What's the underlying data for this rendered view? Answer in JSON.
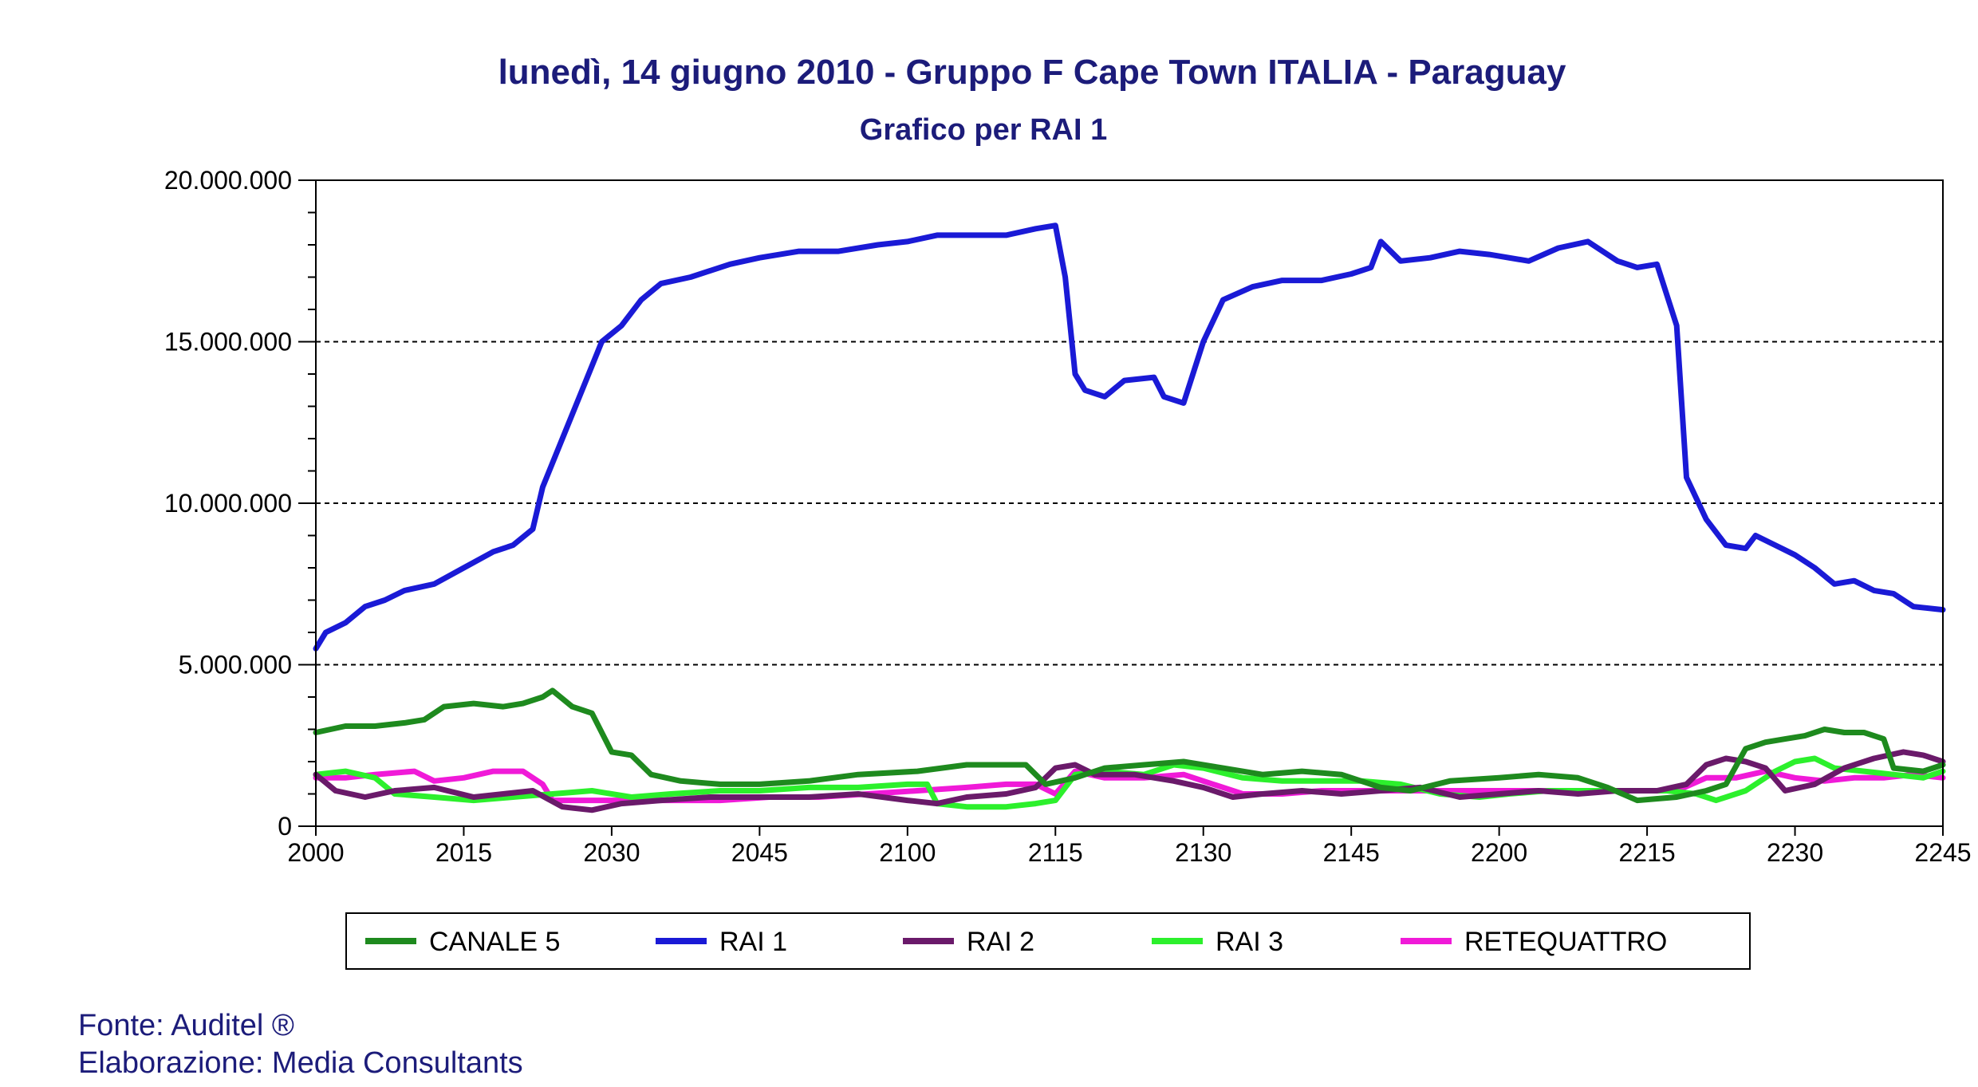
{
  "chart_data": {
    "type": "line",
    "title": "lunedì, 14 giugno 2010 - Gruppo F Cape Town  ITALIA - Paraguay",
    "subtitle": "Grafico per RAI 1",
    "xlabel": "",
    "ylabel": "",
    "x_tick_labels": [
      "2000",
      "2015",
      "2030",
      "2045",
      "2100",
      "2115",
      "2130",
      "2145",
      "2200",
      "2215",
      "2230",
      "2245"
    ],
    "x_range": [
      0,
      165
    ],
    "y_range": [
      0,
      20000000
    ],
    "y_ticks": [
      0,
      5000000,
      10000000,
      15000000,
      20000000
    ],
    "y_tick_labels": [
      "0",
      "5.000.000",
      "10.000.000",
      "15.000.000",
      "20.000.000"
    ],
    "grid": "dashed horizontal at 5.000.000, 10.000.000, 15.000.000",
    "legend_position": "bottom",
    "series": [
      {
        "name": "CANALE 5",
        "color": "#1e8a1e",
        "points": [
          [
            0,
            2900000
          ],
          [
            3,
            3100000
          ],
          [
            6,
            3100000
          ],
          [
            9,
            3200000
          ],
          [
            11,
            3300000
          ],
          [
            13,
            3700000
          ],
          [
            16,
            3800000
          ],
          [
            19,
            3700000
          ],
          [
            21,
            3800000
          ],
          [
            23,
            4000000
          ],
          [
            24,
            4200000
          ],
          [
            26,
            3700000
          ],
          [
            28,
            3500000
          ],
          [
            30,
            2300000
          ],
          [
            32,
            2200000
          ],
          [
            34,
            1600000
          ],
          [
            37,
            1400000
          ],
          [
            41,
            1300000
          ],
          [
            45,
            1300000
          ],
          [
            50,
            1400000
          ],
          [
            55,
            1600000
          ],
          [
            61,
            1700000
          ],
          [
            66,
            1900000
          ],
          [
            72,
            1900000
          ],
          [
            74,
            1300000
          ],
          [
            77,
            1500000
          ],
          [
            80,
            1800000
          ],
          [
            84,
            1900000
          ],
          [
            88,
            2000000
          ],
          [
            92,
            1800000
          ],
          [
            96,
            1600000
          ],
          [
            100,
            1700000
          ],
          [
            104,
            1600000
          ],
          [
            108,
            1200000
          ],
          [
            111,
            1100000
          ],
          [
            115,
            1400000
          ],
          [
            120,
            1500000
          ],
          [
            124,
            1600000
          ],
          [
            128,
            1500000
          ],
          [
            131,
            1200000
          ],
          [
            134,
            800000
          ],
          [
            138,
            900000
          ],
          [
            141,
            1100000
          ],
          [
            143,
            1300000
          ],
          [
            145,
            2400000
          ],
          [
            147,
            2600000
          ],
          [
            149,
            2700000
          ],
          [
            151,
            2800000
          ],
          [
            153,
            3000000
          ],
          [
            155,
            2900000
          ],
          [
            157,
            2900000
          ],
          [
            159,
            2700000
          ],
          [
            160,
            1800000
          ],
          [
            163,
            1700000
          ],
          [
            165,
            1900000
          ]
        ]
      },
      {
        "name": "RAI 1",
        "color": "#1a1ad6",
        "points": [
          [
            0,
            5500000
          ],
          [
            1,
            6000000
          ],
          [
            3,
            6300000
          ],
          [
            5,
            6800000
          ],
          [
            7,
            7000000
          ],
          [
            9,
            7300000
          ],
          [
            12,
            7500000
          ],
          [
            15,
            8000000
          ],
          [
            18,
            8500000
          ],
          [
            20,
            8700000
          ],
          [
            22,
            9200000
          ],
          [
            23,
            10500000
          ],
          [
            25,
            12000000
          ],
          [
            27,
            13500000
          ],
          [
            29,
            15000000
          ],
          [
            31,
            15500000
          ],
          [
            33,
            16300000
          ],
          [
            35,
            16800000
          ],
          [
            38,
            17000000
          ],
          [
            42,
            17400000
          ],
          [
            45,
            17600000
          ],
          [
            49,
            17800000
          ],
          [
            53,
            17800000
          ],
          [
            57,
            18000000
          ],
          [
            60,
            18100000
          ],
          [
            63,
            18300000
          ],
          [
            67,
            18300000
          ],
          [
            70,
            18300000
          ],
          [
            73,
            18500000
          ],
          [
            75,
            18600000
          ],
          [
            76,
            17000000
          ],
          [
            77,
            14000000
          ],
          [
            78,
            13500000
          ],
          [
            80,
            13300000
          ],
          [
            82,
            13800000
          ],
          [
            85,
            13900000
          ],
          [
            86,
            13300000
          ],
          [
            88,
            13100000
          ],
          [
            90,
            15000000
          ],
          [
            92,
            16300000
          ],
          [
            95,
            16700000
          ],
          [
            98,
            16900000
          ],
          [
            102,
            16900000
          ],
          [
            105,
            17100000
          ],
          [
            107,
            17300000
          ],
          [
            108,
            18100000
          ],
          [
            110,
            17500000
          ],
          [
            113,
            17600000
          ],
          [
            116,
            17800000
          ],
          [
            119,
            17700000
          ],
          [
            123,
            17500000
          ],
          [
            126,
            17900000
          ],
          [
            129,
            18100000
          ],
          [
            132,
            17500000
          ],
          [
            134,
            17300000
          ],
          [
            136,
            17400000
          ],
          [
            138,
            15500000
          ],
          [
            139,
            10800000
          ],
          [
            141,
            9500000
          ],
          [
            143,
            8700000
          ],
          [
            145,
            8600000
          ],
          [
            146,
            9000000
          ],
          [
            148,
            8700000
          ],
          [
            150,
            8400000
          ],
          [
            152,
            8000000
          ],
          [
            154,
            7500000
          ],
          [
            156,
            7600000
          ],
          [
            158,
            7300000
          ],
          [
            160,
            7200000
          ],
          [
            162,
            6800000
          ],
          [
            165,
            6700000
          ]
        ]
      },
      {
        "name": "RAI 2",
        "color": "#6a1a6a",
        "points": [
          [
            0,
            1600000
          ],
          [
            2,
            1100000
          ],
          [
            5,
            900000
          ],
          [
            8,
            1100000
          ],
          [
            12,
            1200000
          ],
          [
            16,
            900000
          ],
          [
            19,
            1000000
          ],
          [
            22,
            1100000
          ],
          [
            25,
            600000
          ],
          [
            28,
            500000
          ],
          [
            31,
            700000
          ],
          [
            35,
            800000
          ],
          [
            40,
            900000
          ],
          [
            45,
            900000
          ],
          [
            50,
            900000
          ],
          [
            55,
            1000000
          ],
          [
            60,
            800000
          ],
          [
            63,
            700000
          ],
          [
            66,
            900000
          ],
          [
            70,
            1000000
          ],
          [
            73,
            1200000
          ],
          [
            75,
            1800000
          ],
          [
            77,
            1900000
          ],
          [
            79,
            1600000
          ],
          [
            83,
            1600000
          ],
          [
            87,
            1400000
          ],
          [
            90,
            1200000
          ],
          [
            93,
            900000
          ],
          [
            96,
            1000000
          ],
          [
            100,
            1100000
          ],
          [
            104,
            1000000
          ],
          [
            108,
            1100000
          ],
          [
            112,
            1200000
          ],
          [
            116,
            900000
          ],
          [
            120,
            1000000
          ],
          [
            124,
            1100000
          ],
          [
            128,
            1000000
          ],
          [
            132,
            1100000
          ],
          [
            136,
            1100000
          ],
          [
            139,
            1300000
          ],
          [
            141,
            1900000
          ],
          [
            143,
            2100000
          ],
          [
            145,
            2000000
          ],
          [
            147,
            1800000
          ],
          [
            149,
            1100000
          ],
          [
            152,
            1300000
          ],
          [
            155,
            1800000
          ],
          [
            158,
            2100000
          ],
          [
            161,
            2300000
          ],
          [
            163,
            2200000
          ],
          [
            165,
            2000000
          ]
        ]
      },
      {
        "name": "RAI 3",
        "color": "#2cf02c",
        "points": [
          [
            0,
            1600000
          ],
          [
            3,
            1700000
          ],
          [
            6,
            1500000
          ],
          [
            8,
            1000000
          ],
          [
            12,
            900000
          ],
          [
            16,
            800000
          ],
          [
            20,
            900000
          ],
          [
            24,
            1000000
          ],
          [
            28,
            1100000
          ],
          [
            32,
            900000
          ],
          [
            36,
            1000000
          ],
          [
            41,
            1100000
          ],
          [
            45,
            1100000
          ],
          [
            50,
            1200000
          ],
          [
            55,
            1200000
          ],
          [
            60,
            1300000
          ],
          [
            62,
            1300000
          ],
          [
            63,
            700000
          ],
          [
            66,
            600000
          ],
          [
            70,
            600000
          ],
          [
            73,
            700000
          ],
          [
            75,
            800000
          ],
          [
            77,
            1600000
          ],
          [
            80,
            1700000
          ],
          [
            84,
            1600000
          ],
          [
            87,
            1900000
          ],
          [
            90,
            1800000
          ],
          [
            94,
            1500000
          ],
          [
            98,
            1400000
          ],
          [
            102,
            1400000
          ],
          [
            106,
            1400000
          ],
          [
            110,
            1300000
          ],
          [
            114,
            1000000
          ],
          [
            118,
            900000
          ],
          [
            121,
            1000000
          ],
          [
            125,
            1100000
          ],
          [
            129,
            1100000
          ],
          [
            133,
            1100000
          ],
          [
            137,
            1100000
          ],
          [
            140,
            1000000
          ],
          [
            142,
            800000
          ],
          [
            145,
            1100000
          ],
          [
            148,
            1700000
          ],
          [
            150,
            2000000
          ],
          [
            152,
            2100000
          ],
          [
            154,
            1800000
          ],
          [
            157,
            1700000
          ],
          [
            160,
            1600000
          ],
          [
            163,
            1500000
          ],
          [
            165,
            1700000
          ]
        ]
      },
      {
        "name": "RETEQUATTRO",
        "color": "#f01ad8",
        "points": [
          [
            0,
            1500000
          ],
          [
            3,
            1500000
          ],
          [
            6,
            1600000
          ],
          [
            10,
            1700000
          ],
          [
            12,
            1400000
          ],
          [
            15,
            1500000
          ],
          [
            18,
            1700000
          ],
          [
            21,
            1700000
          ],
          [
            23,
            1300000
          ],
          [
            24,
            800000
          ],
          [
            27,
            800000
          ],
          [
            31,
            800000
          ],
          [
            36,
            800000
          ],
          [
            41,
            800000
          ],
          [
            46,
            900000
          ],
          [
            51,
            900000
          ],
          [
            56,
            1000000
          ],
          [
            61,
            1100000
          ],
          [
            66,
            1200000
          ],
          [
            70,
            1300000
          ],
          [
            73,
            1300000
          ],
          [
            75,
            1000000
          ],
          [
            77,
            1700000
          ],
          [
            80,
            1500000
          ],
          [
            84,
            1500000
          ],
          [
            88,
            1600000
          ],
          [
            91,
            1300000
          ],
          [
            94,
            1000000
          ],
          [
            98,
            1000000
          ],
          [
            102,
            1100000
          ],
          [
            106,
            1100000
          ],
          [
            110,
            1100000
          ],
          [
            114,
            1100000
          ],
          [
            118,
            1100000
          ],
          [
            122,
            1100000
          ],
          [
            126,
            1100000
          ],
          [
            130,
            1100000
          ],
          [
            134,
            1100000
          ],
          [
            138,
            1100000
          ],
          [
            141,
            1500000
          ],
          [
            144,
            1500000
          ],
          [
            147,
            1700000
          ],
          [
            150,
            1500000
          ],
          [
            153,
            1400000
          ],
          [
            156,
            1500000
          ],
          [
            159,
            1500000
          ],
          [
            162,
            1600000
          ],
          [
            165,
            1500000
          ]
        ]
      }
    ]
  },
  "footer": {
    "source": "Fonte: Auditel ®",
    "elaboration": "Elaborazione: Media Consultants"
  }
}
